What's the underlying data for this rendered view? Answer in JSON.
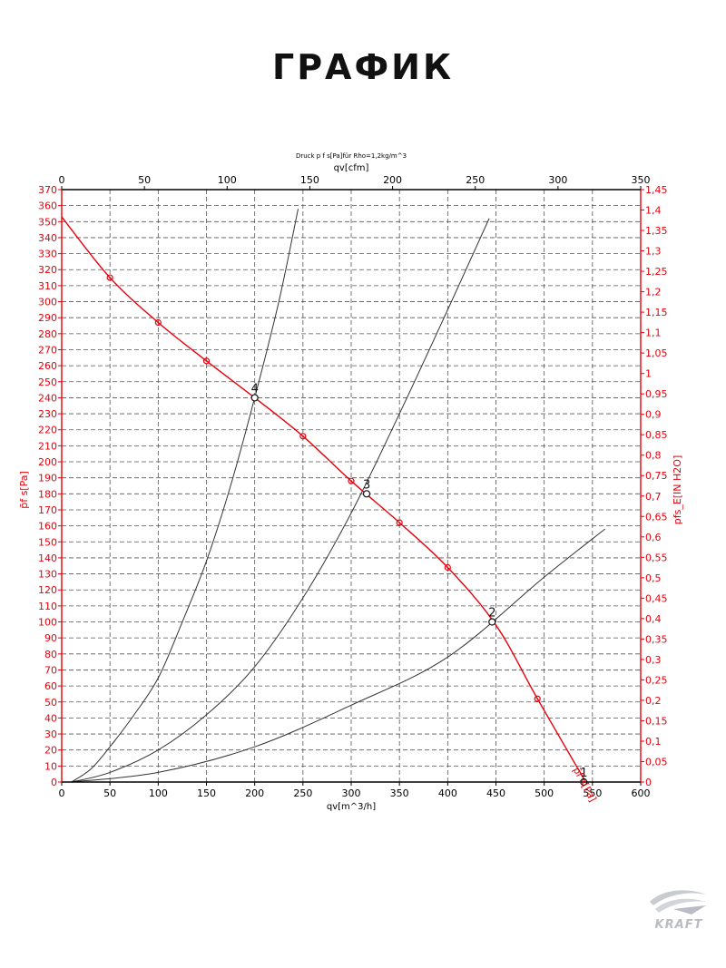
{
  "page": {
    "title": "ГРАФИК"
  },
  "logo": {
    "text": "KRAFT"
  },
  "chart_data": {
    "type": "line",
    "title": "Druck p f s[Pa]für Rho=1,2kg/m^3",
    "xlabel": "qv[m^3/h]",
    "x2label": "qv[cfm]",
    "ylabel": "p̄f s[Pa]",
    "y2label": "pfs_E[IN H2O]",
    "xlim": [
      0,
      600
    ],
    "x2lim": [
      0,
      350
    ],
    "ylim": [
      0,
      370
    ],
    "y2lim": [
      0,
      1.45
    ],
    "grid": true,
    "x_ticks": [
      "0",
      "50",
      "100",
      "150",
      "200",
      "250",
      "300",
      "350",
      "400",
      "450",
      "500",
      "550",
      "600"
    ],
    "x2_ticks": [
      "0",
      "50",
      "100",
      "150",
      "200",
      "250",
      "300",
      "350"
    ],
    "y_ticks": [
      "0",
      "10",
      "20",
      "30",
      "40",
      "50",
      "60",
      "70",
      "80",
      "90",
      "100",
      "110",
      "120",
      "130",
      "140",
      "150",
      "160",
      "170",
      "180",
      "190",
      "200",
      "210",
      "220",
      "230",
      "240",
      "250",
      "260",
      "270",
      "280",
      "290",
      "300",
      "310",
      "320",
      "330",
      "340",
      "350",
      "360",
      "370"
    ],
    "y2_ticks": [
      "0",
      "0,05",
      "0,1",
      "0,15",
      "0,2",
      "0,25",
      "0,3",
      "0,35",
      "0,4",
      "0,45",
      "0,5",
      "0,55",
      "0,6",
      "0,65",
      "0,7",
      "0,75",
      "0,8",
      "0,85",
      "0,9",
      "0,95",
      "1",
      "1,05",
      "1,1",
      "1,15",
      "1,2",
      "1,25",
      "1,3",
      "1,35",
      "1,4",
      "1,45"
    ],
    "fan_curve": {
      "name": "p̄f s[Pa]",
      "label": "p̄f s[Pa]",
      "x": [
        0,
        50,
        100,
        150,
        200,
        250,
        300,
        350,
        400,
        450,
        493,
        543
      ],
      "y": [
        353,
        315,
        287,
        263,
        240,
        216,
        188,
        162,
        134,
        98,
        52,
        0
      ],
      "marker_x": [
        50,
        100,
        150,
        250,
        300,
        350,
        400,
        493
      ],
      "marker_y": [
        315,
        287,
        263,
        216,
        188,
        162,
        134,
        52
      ]
    },
    "system_curves": [
      {
        "name": "4",
        "x": [
          10,
          30,
          50,
          75,
          100,
          125,
          150,
          175,
          200,
          225,
          245
        ],
        "y": [
          0,
          8,
          22,
          42,
          65,
          100,
          138,
          185,
          240,
          300,
          358
        ]
      },
      {
        "name": "3",
        "x": [
          10,
          50,
          100,
          150,
          200,
          250,
          300,
          350,
          400,
          443
        ],
        "y": [
          0,
          6,
          20,
          42,
          72,
          115,
          168,
          230,
          295,
          352
        ]
      },
      {
        "name": "2",
        "x": [
          10,
          100,
          200,
          300,
          400,
          500,
          563
        ],
        "y": [
          0,
          6,
          22,
          48,
          78,
          128,
          158
        ]
      }
    ],
    "operating_points": [
      {
        "label": "4",
        "x": 200,
        "y": 240
      },
      {
        "label": "3",
        "x": 316,
        "y": 180
      },
      {
        "label": "2",
        "x": 446,
        "y": 100
      },
      {
        "label": "1",
        "x": 541,
        "y": 0
      }
    ]
  }
}
